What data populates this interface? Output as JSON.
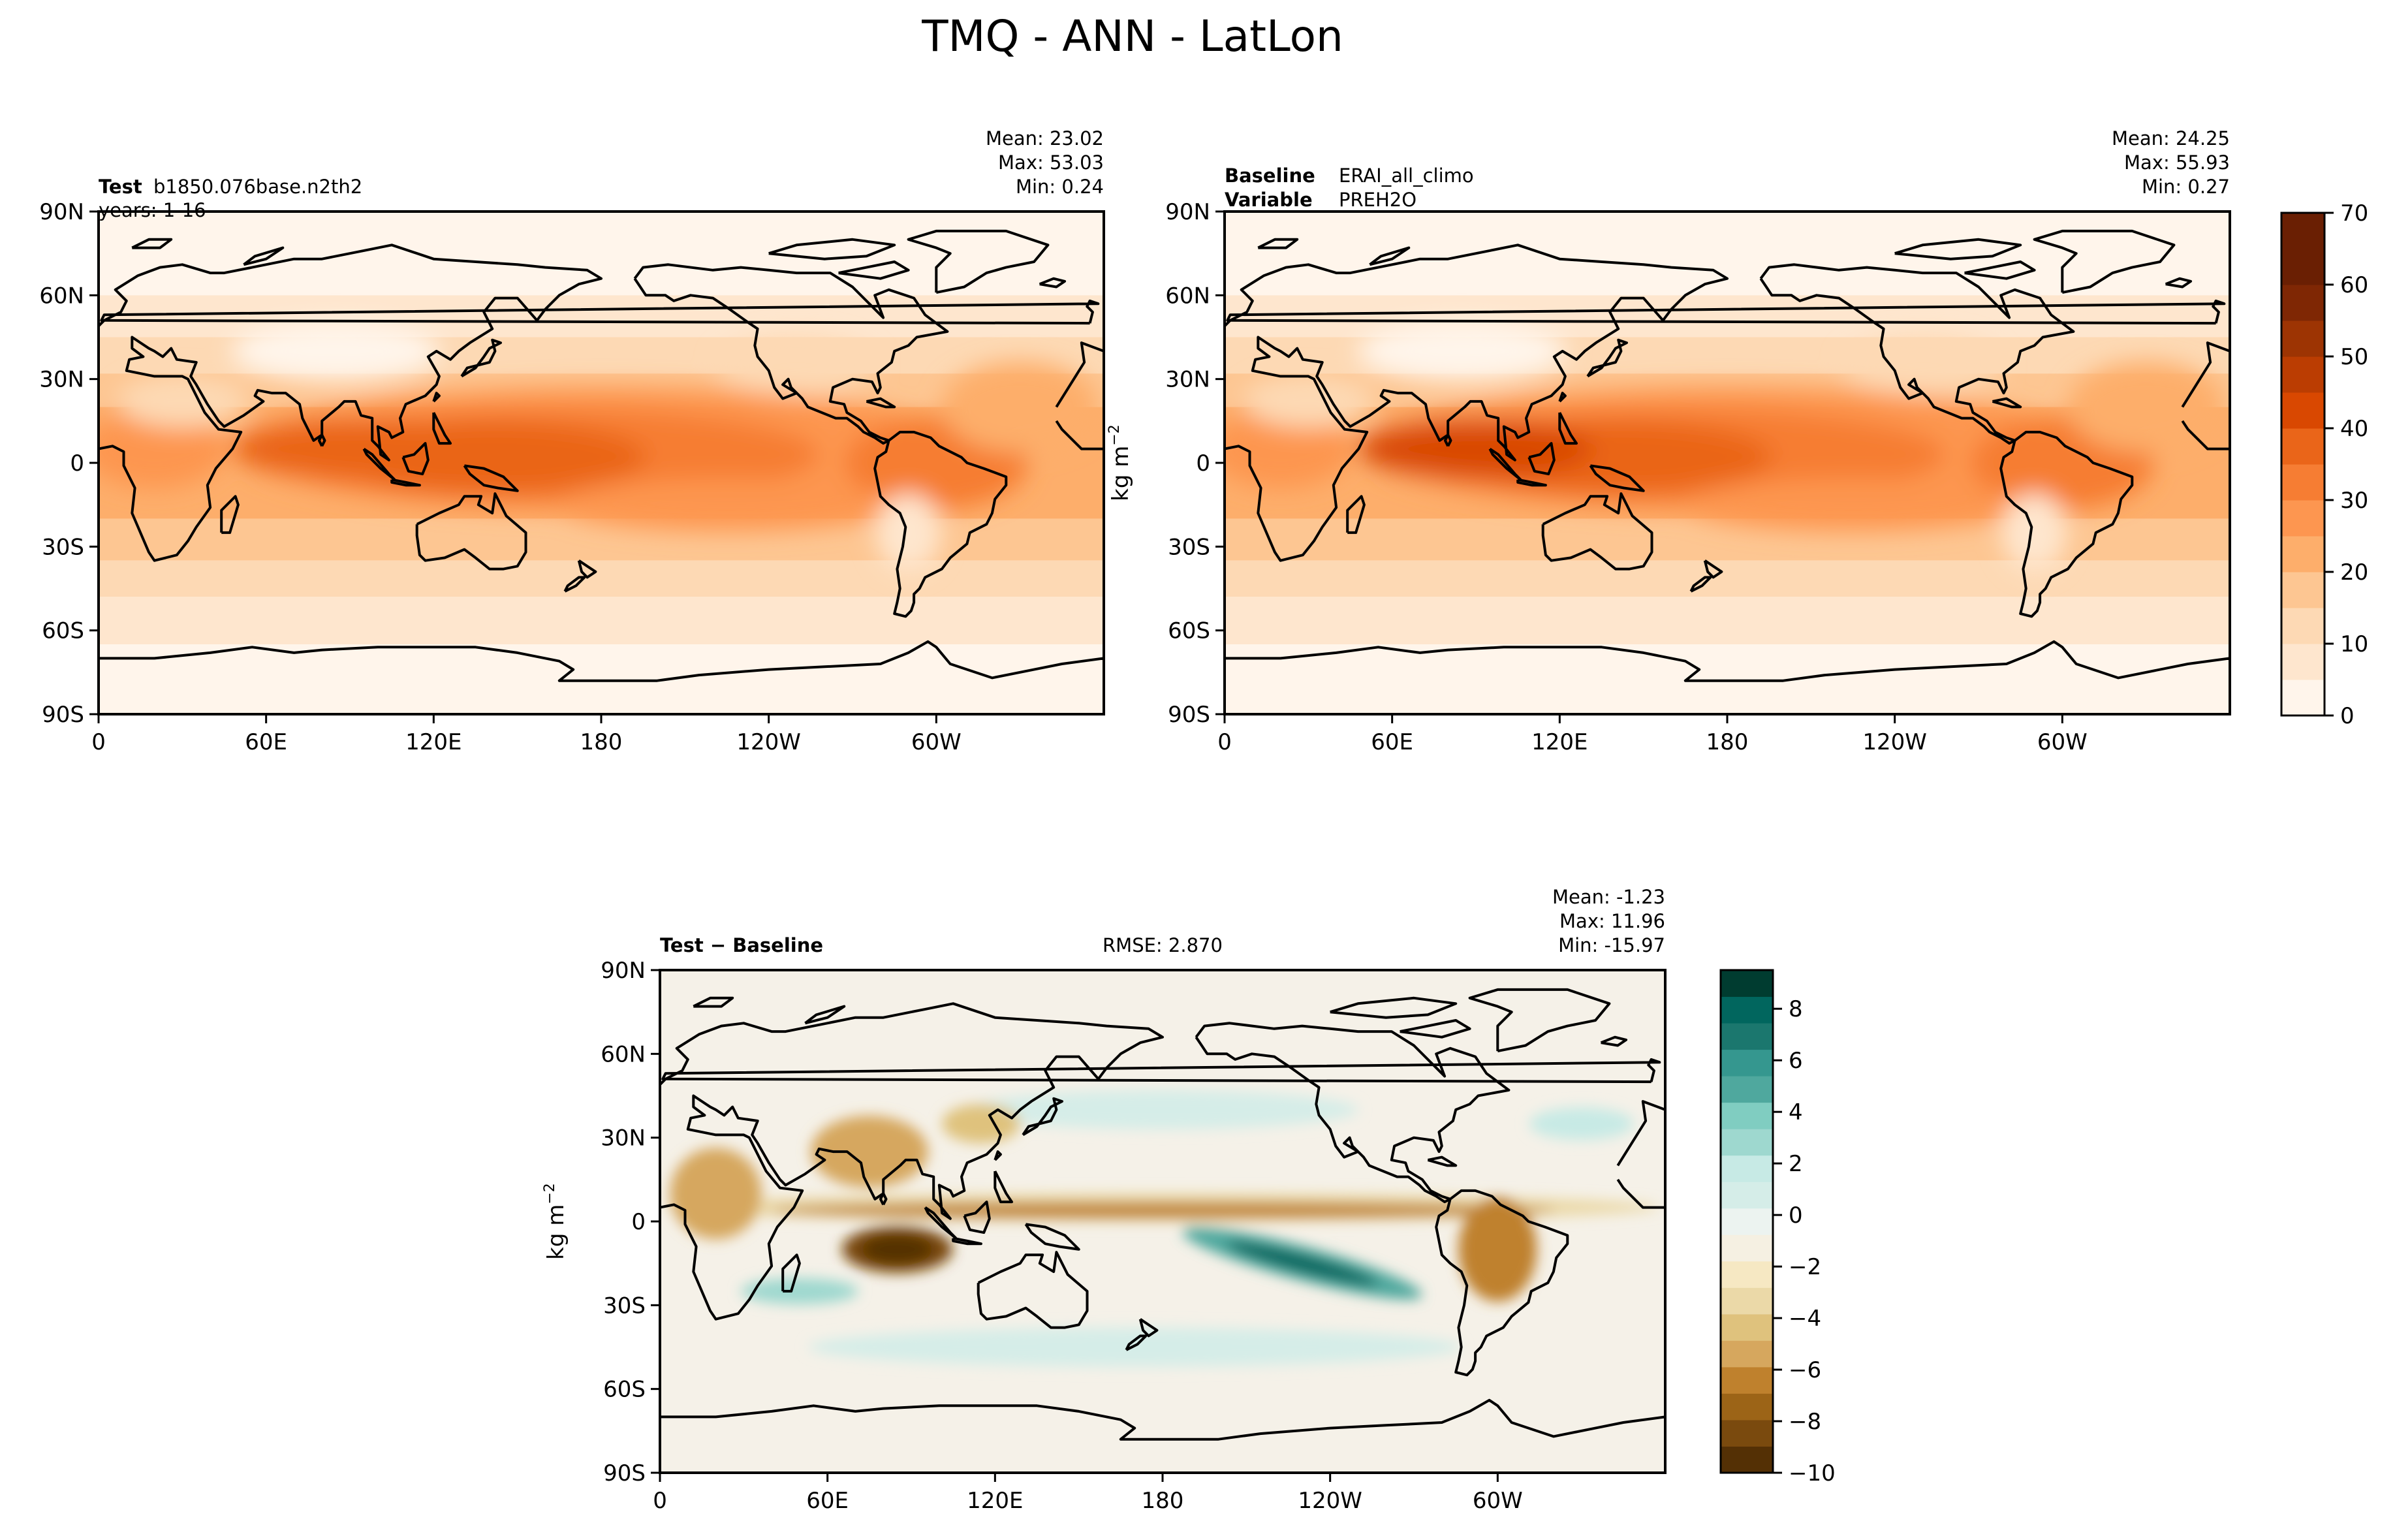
{
  "figure": {
    "title": "TMQ - ANN - LatLon"
  },
  "panels": [
    {
      "id": "test",
      "label_key": "Test",
      "label_value": "b1850.076base.n2th2",
      "label2_key": "",
      "label2_value": "years: 1-16",
      "stats": [
        "Mean: 23.02",
        "Max: 53.03",
        "Min:  0.24"
      ],
      "center": ""
    },
    {
      "id": "baseline",
      "label_key": "Baseline",
      "label_value": "ERAI_all_climo",
      "label2_key": "Variable",
      "label2_value": "PREH2O",
      "stats": [
        "Mean: 24.25",
        "Max: 55.93",
        "Min:  0.27"
      ],
      "center": ""
    },
    {
      "id": "diff",
      "label_key": "Test − Baseline",
      "label_value": "",
      "label2_key": "",
      "label2_value": "",
      "stats": [
        "Mean: -1.23",
        "Max: 11.96",
        "Min: -15.97"
      ],
      "center": "RMSE: 2.870"
    }
  ],
  "axes": {
    "lat_ticks": [
      "90N",
      "60N",
      "30N",
      "0",
      "30S",
      "60S",
      "90S"
    ],
    "lon_ticks": [
      "0",
      "60E",
      "120E",
      "180",
      "120W",
      "60W"
    ],
    "ylabel": "kg m",
    "ylabel_sup": "−2"
  },
  "colorbars": {
    "abs": {
      "ticks": [
        "0",
        "10",
        "20",
        "30",
        "40",
        "50",
        "60",
        "70"
      ],
      "levels": [
        0,
        5,
        10,
        15,
        20,
        25,
        30,
        35,
        40,
        45,
        50,
        55,
        60,
        65,
        70
      ],
      "colors": [
        "#fff5eb",
        "#fee6ce",
        "#fdd9b4",
        "#fdc692",
        "#fdae6b",
        "#fd9650",
        "#f67d33",
        "#ea6519",
        "#d94801",
        "#bb3d02",
        "#9d3403",
        "#7f2704",
        "#6a1f03"
      ]
    },
    "diff": {
      "ticks": [
        "8",
        "6",
        "4",
        "2",
        "0",
        "−2",
        "−4",
        "−6",
        "−8",
        "−10"
      ],
      "tick_values": [
        8,
        6,
        4,
        2,
        0,
        -2,
        -4,
        -6,
        -8,
        -10
      ],
      "range": [
        -10,
        9.5
      ],
      "colors": [
        "#543005",
        "#7a4a0e",
        "#9c6417",
        "#bf812d",
        "#d6a75e",
        "#dfc27d",
        "#ebd9a8",
        "#f6e8c3",
        "#f5f0e2",
        "#ecf3f0",
        "#d5ede8",
        "#c7eae5",
        "#9ed8cf",
        "#80cdc1",
        "#4fa89e",
        "#35978f",
        "#1b776e",
        "#01665e",
        "#003c30"
      ]
    }
  },
  "map_data": {
    "fields": [
      "TMQ test climatology",
      "PREH2O baseline climatology",
      "Test minus Baseline difference"
    ],
    "units": "kg m-2"
  }
}
